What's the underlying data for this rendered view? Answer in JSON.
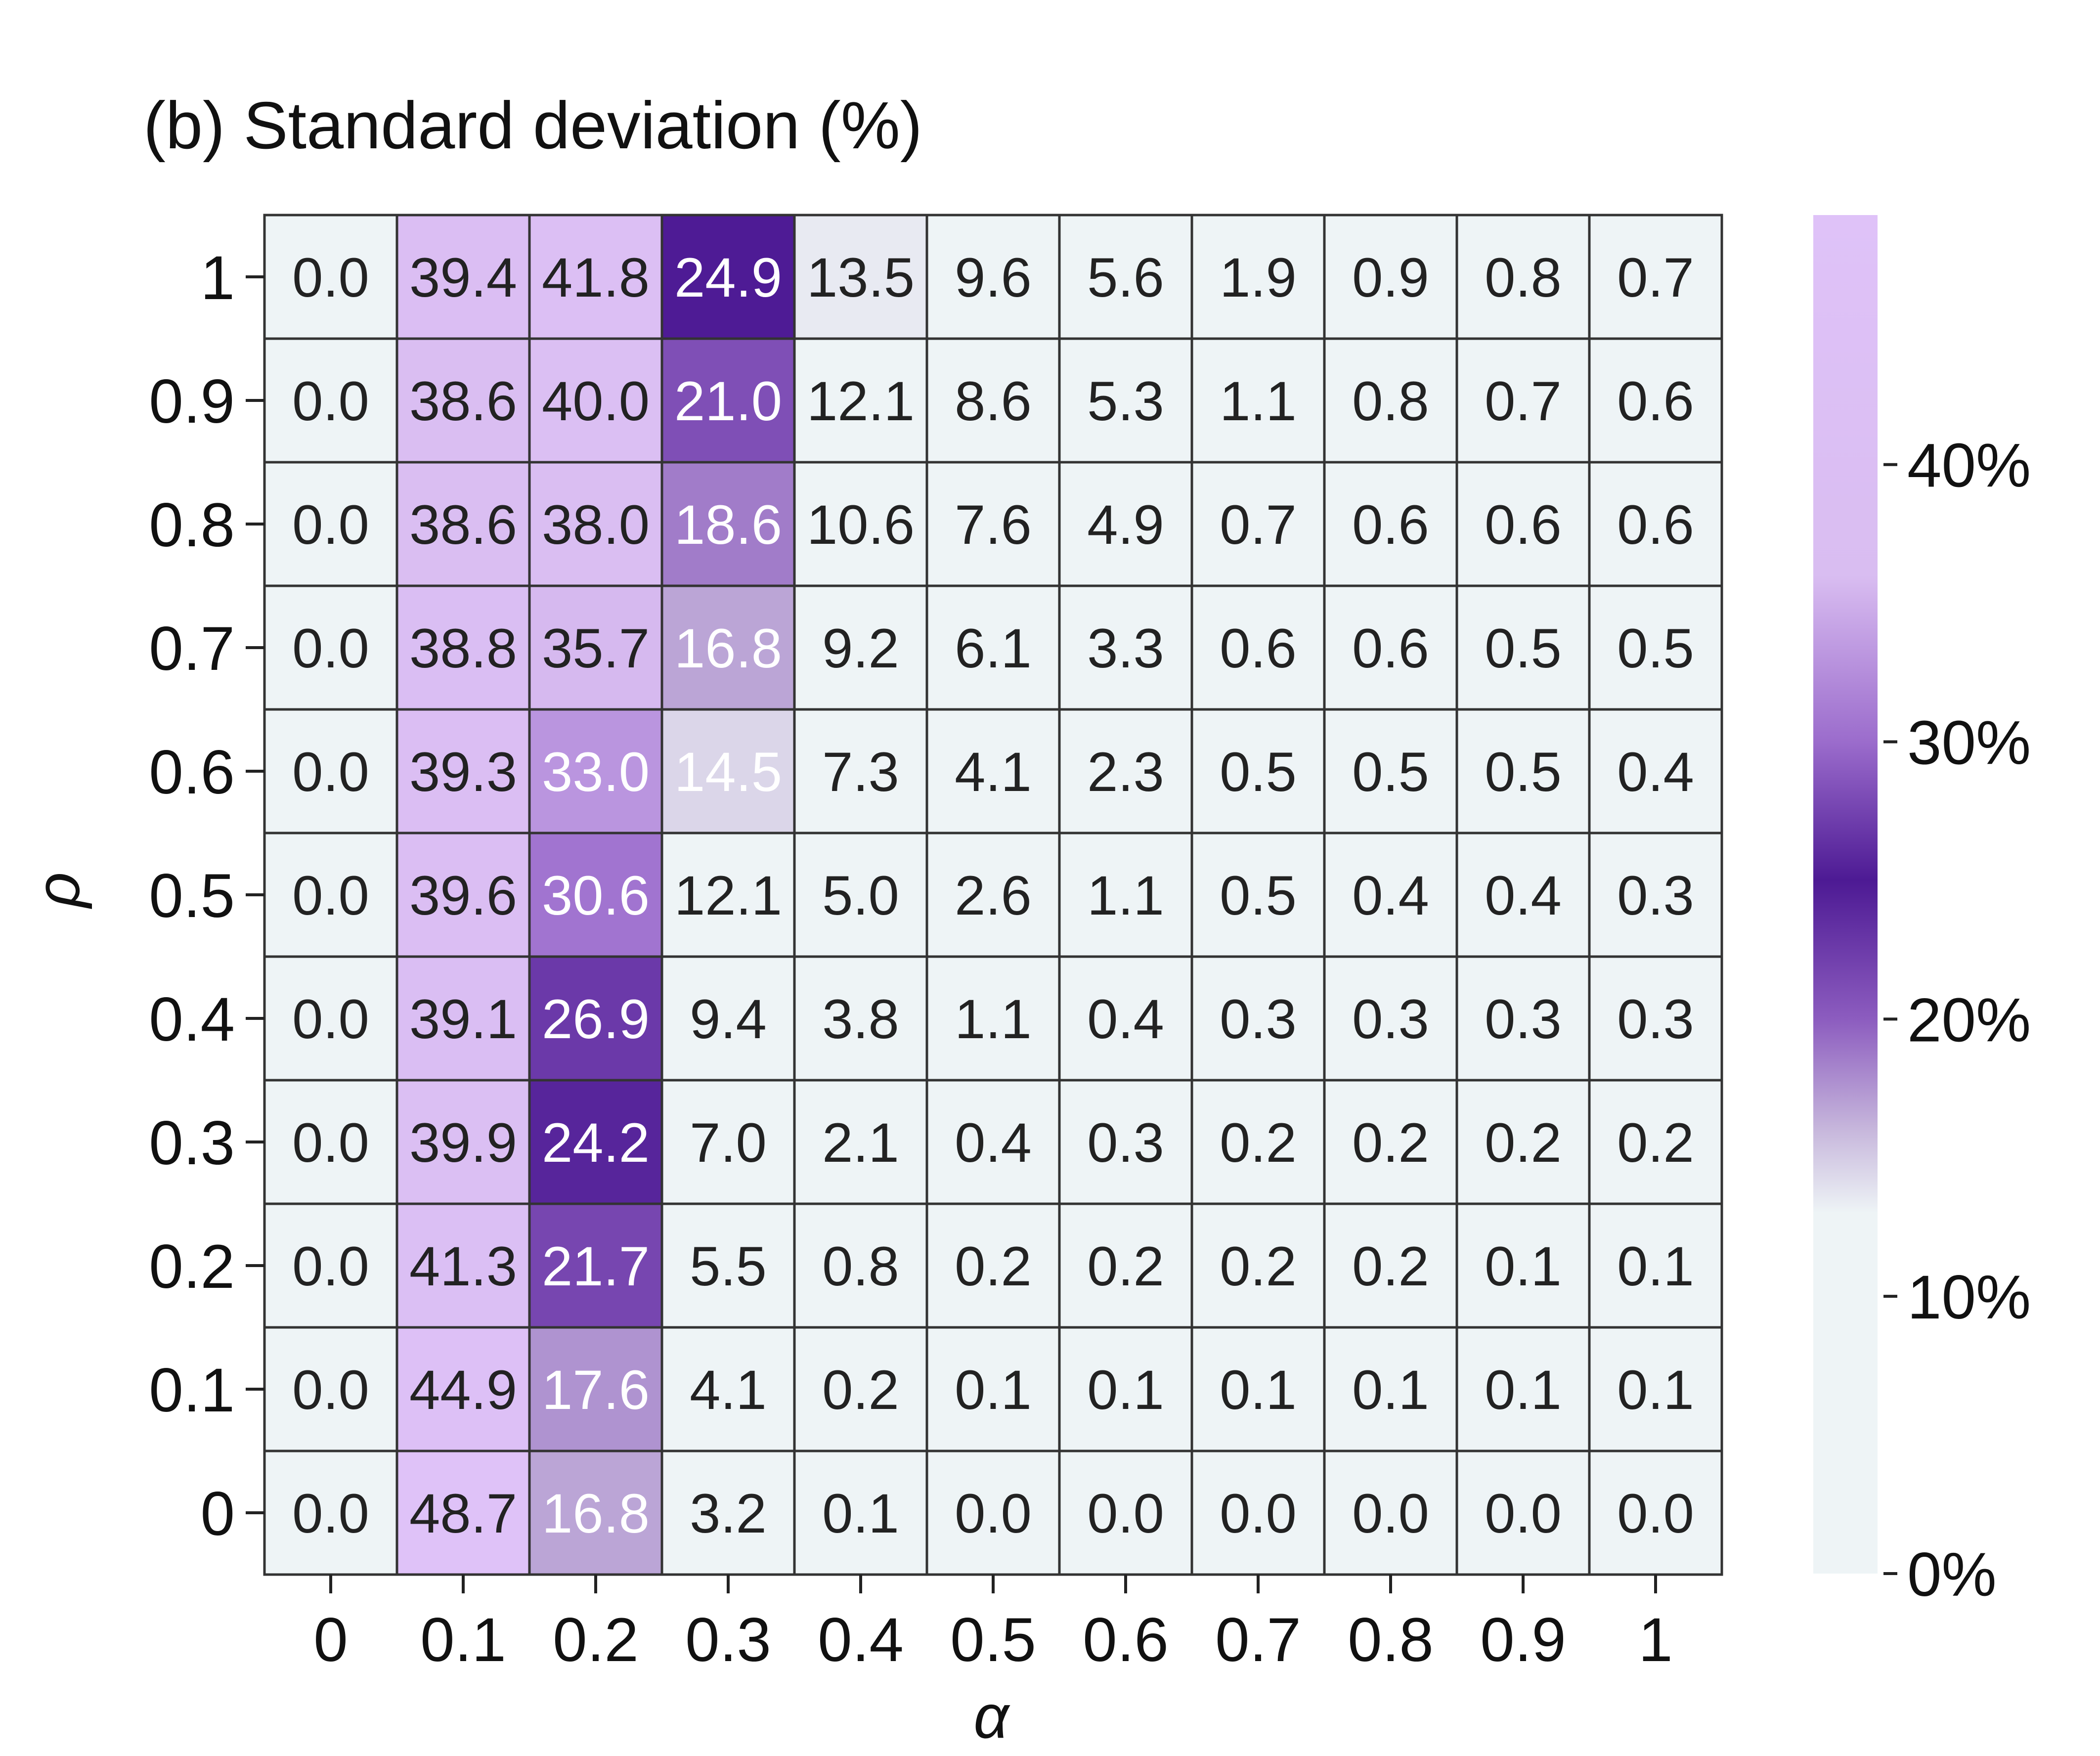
{
  "chart_data": {
    "type": "heatmap",
    "title": "(b) Standard deviation (%)",
    "xlabel": "α",
    "ylabel": "ρ",
    "x_categories": [
      "0",
      "0.1",
      "0.2",
      "0.3",
      "0.4",
      "0.5",
      "0.6",
      "0.7",
      "0.8",
      "0.9",
      "1"
    ],
    "y_categories": [
      "1",
      "0.9",
      "0.8",
      "0.7",
      "0.6",
      "0.5",
      "0.4",
      "0.3",
      "0.2",
      "0.1",
      "0"
    ],
    "values": [
      [
        0.0,
        39.4,
        41.8,
        24.9,
        13.5,
        9.6,
        5.6,
        1.9,
        0.9,
        0.8,
        0.7
      ],
      [
        0.0,
        38.6,
        40.0,
        21.0,
        12.1,
        8.6,
        5.3,
        1.1,
        0.8,
        0.7,
        0.6
      ],
      [
        0.0,
        38.6,
        38.0,
        18.6,
        10.6,
        7.6,
        4.9,
        0.7,
        0.6,
        0.6,
        0.6
      ],
      [
        0.0,
        38.8,
        35.7,
        16.8,
        9.2,
        6.1,
        3.3,
        0.6,
        0.6,
        0.5,
        0.5
      ],
      [
        0.0,
        39.3,
        33.0,
        14.5,
        7.3,
        4.1,
        2.3,
        0.5,
        0.5,
        0.5,
        0.4
      ],
      [
        0.0,
        39.6,
        30.6,
        12.1,
        5.0,
        2.6,
        1.1,
        0.5,
        0.4,
        0.4,
        0.3
      ],
      [
        0.0,
        39.1,
        26.9,
        9.4,
        3.8,
        1.1,
        0.4,
        0.3,
        0.3,
        0.3,
        0.3
      ],
      [
        0.0,
        39.9,
        24.2,
        7.0,
        2.1,
        0.4,
        0.3,
        0.2,
        0.2,
        0.2,
        0.2
      ],
      [
        0.0,
        41.3,
        21.7,
        5.5,
        0.8,
        0.2,
        0.2,
        0.2,
        0.2,
        0.1,
        0.1
      ],
      [
        0.0,
        44.9,
        17.6,
        4.1,
        0.2,
        0.1,
        0.1,
        0.1,
        0.1,
        0.1,
        0.1
      ],
      [
        0.0,
        48.7,
        16.8,
        3.2,
        0.1,
        0.0,
        0.0,
        0.0,
        0.0,
        0.0,
        0.0
      ]
    ],
    "colorbar": {
      "range": [
        0,
        49
      ],
      "ticks": [
        0,
        10,
        20,
        30,
        40
      ],
      "tick_labels": [
        "0%",
        "10%",
        "20%",
        "30%",
        "40%"
      ],
      "stops": [
        {
          "value": 0,
          "color": "#eef4f6"
        },
        {
          "value": 13,
          "color": "#eef4f6"
        },
        {
          "value": 16,
          "color": "#c7b7dc"
        },
        {
          "value": 20,
          "color": "#8c5cbf"
        },
        {
          "value": 25,
          "color": "#4d1a94"
        },
        {
          "value": 30,
          "color": "#9b6ccc"
        },
        {
          "value": 36,
          "color": "#d9bdf1"
        },
        {
          "value": 49,
          "color": "#dfc2f8"
        }
      ]
    },
    "cell_text_dark": "#222222",
    "cell_text_light": "#ffffff",
    "grid": true
  }
}
